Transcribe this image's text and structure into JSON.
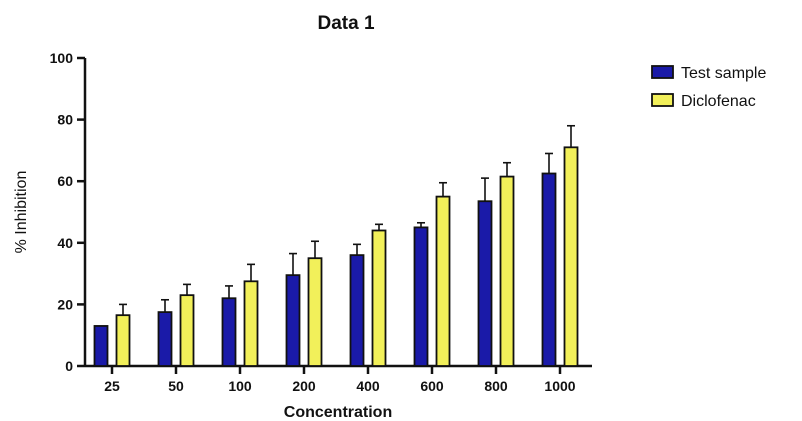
{
  "chart_data": {
    "type": "bar",
    "title": "Data 1",
    "xlabel": "Concentration",
    "ylabel": "% Inhibition",
    "categories": [
      "25",
      "50",
      "100",
      "200",
      "400",
      "600",
      "800",
      "1000"
    ],
    "ylim": [
      0,
      100
    ],
    "yticks": [
      0,
      20,
      40,
      60,
      80,
      100
    ],
    "legend_position": "top-right",
    "grid": false,
    "series": [
      {
        "name": "Test sample",
        "color": "#1a1aa8",
        "values": [
          13,
          17.5,
          22,
          29.5,
          36,
          45,
          53.5,
          62.5
        ],
        "errors": [
          0,
          4,
          4,
          7,
          3.5,
          1.5,
          7.5,
          6.5
        ]
      },
      {
        "name": "Diclofenac",
        "color": "#f2f05a",
        "values": [
          16.5,
          23,
          27.5,
          35,
          44,
          55,
          61.5,
          71
        ],
        "errors": [
          3.5,
          3.5,
          5.5,
          5.5,
          2,
          4.5,
          4.5,
          7
        ]
      }
    ]
  }
}
